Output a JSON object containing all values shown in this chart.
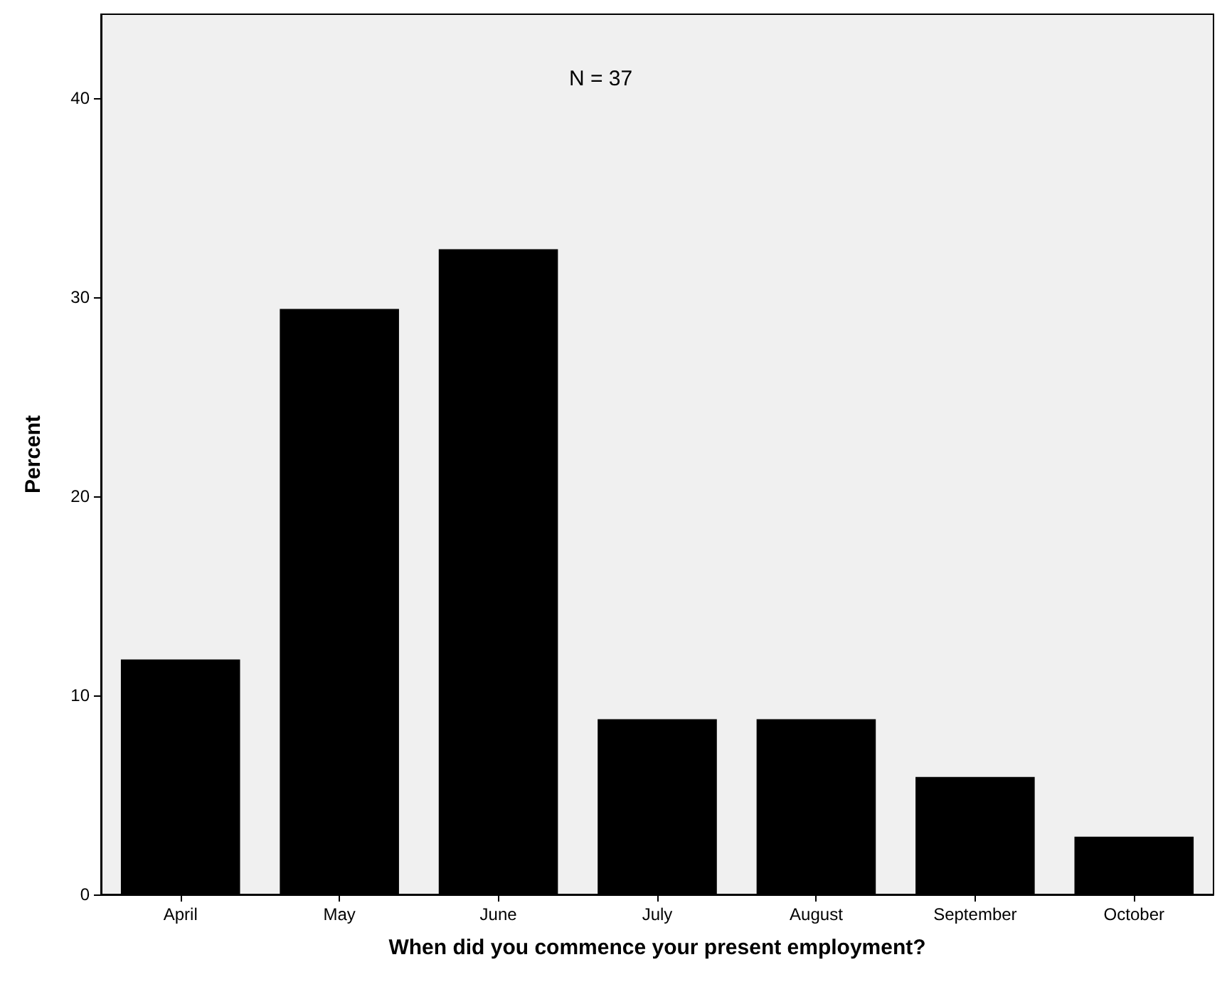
{
  "chart_data": {
    "type": "bar",
    "xlabel": "When did you commence your present employment?",
    "ylabel": "Percent",
    "categories": [
      "April",
      "May",
      "June",
      "July",
      "August",
      "September",
      "October"
    ],
    "values": [
      11.8,
      29.4,
      32.4,
      8.8,
      8.8,
      5.9,
      2.9
    ],
    "color": "#000000",
    "ylim": [
      0,
      44.2
    ],
    "yticks": [
      0,
      10,
      20,
      30,
      40
    ],
    "grid": false,
    "annotations": [
      "N = 37"
    ]
  }
}
